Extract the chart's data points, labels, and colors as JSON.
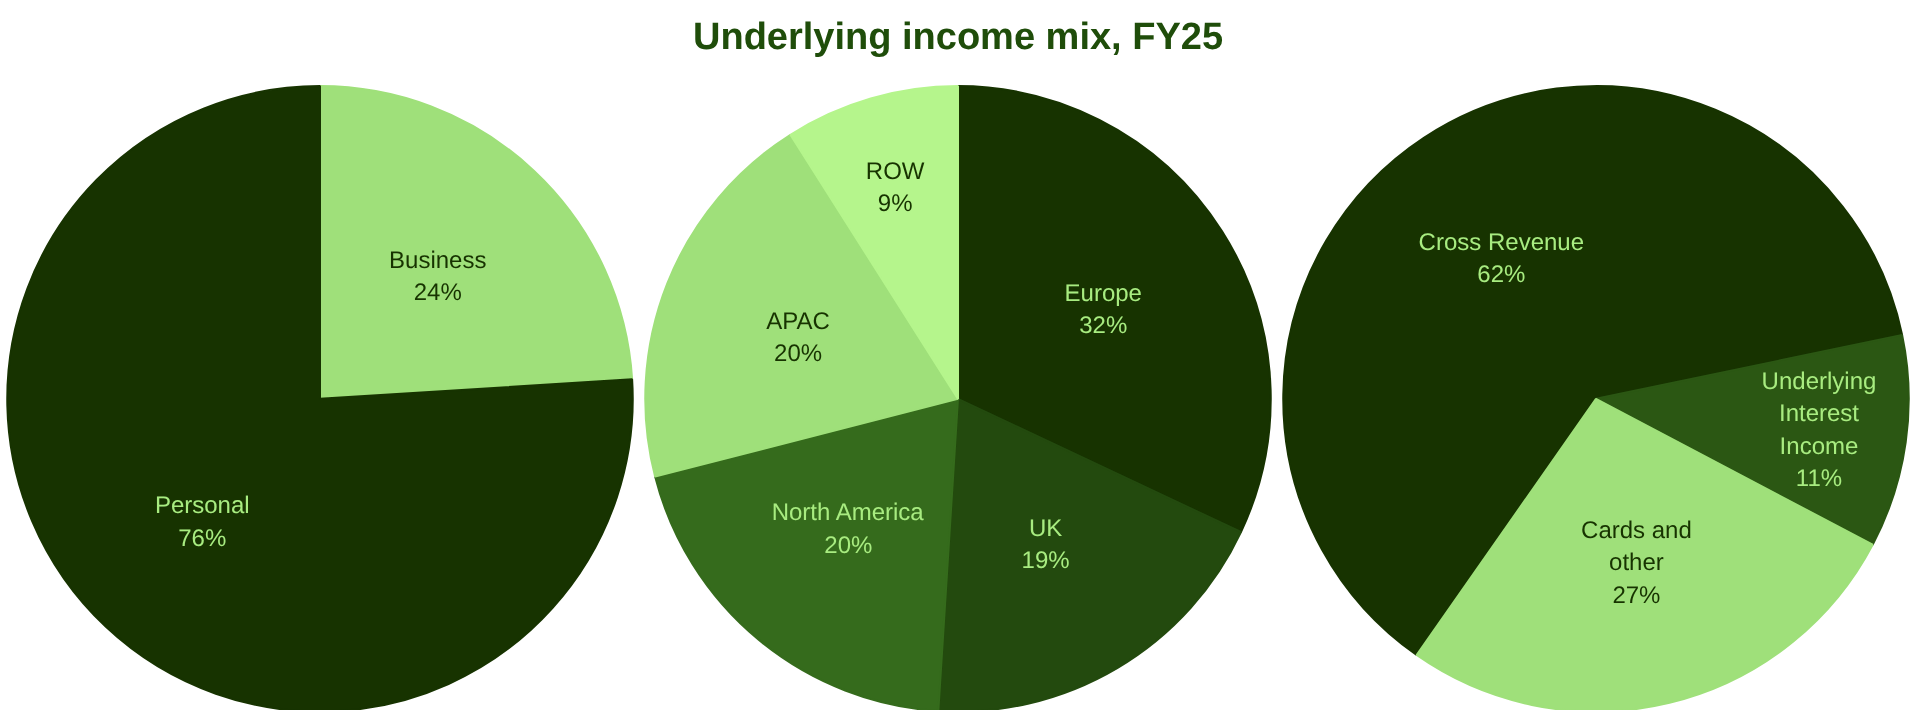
{
  "chart_data": [
    {
      "type": "pie",
      "categories": [
        "Business",
        "Personal"
      ],
      "values": [
        24,
        76
      ],
      "value_labels": [
        "24%",
        "76%"
      ],
      "colors": [
        "#9fe07a",
        "#173300"
      ]
    },
    {
      "type": "pie",
      "title": "Underlying income mix, FY25",
      "categories": [
        "Europe",
        "UK",
        "North America",
        "APAC",
        "ROW"
      ],
      "values": [
        32,
        19,
        20,
        20,
        9
      ],
      "value_labels": [
        "32%",
        "19%",
        "20%",
        "20%",
        "9%"
      ],
      "colors": [
        "#173300",
        "#234a0e",
        "#356b1c",
        "#9fe07a",
        "#b5f58c"
      ]
    },
    {
      "type": "pie",
      "categories": [
        "Cross Revenue",
        "Underlying Interest Income",
        "Cards and other"
      ],
      "values": [
        62,
        11,
        27
      ],
      "value_labels": [
        "62%",
        "11%",
        "27%"
      ],
      "colors": [
        "#173300",
        "#2b5713",
        "#9fe07a"
      ]
    }
  ]
}
